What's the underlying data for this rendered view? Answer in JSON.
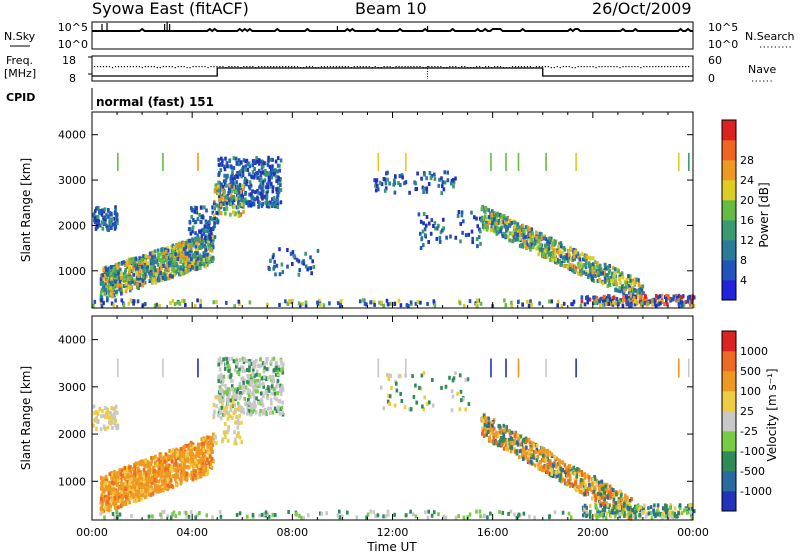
{
  "header": {
    "station": "Syowa East (fitACF)",
    "beam": "Beam 10",
    "date": "26/Oct/2009"
  },
  "top_panels": {
    "nsky_label": "N.Sky",
    "nsearch_label": "N.Search",
    "nsky_ticks": [
      "10^5",
      "10^0"
    ],
    "nsearch_ticks": [
      "10^5",
      "10^0"
    ],
    "freq_label_line1": "Freq.",
    "freq_label_line2": "[MHz]",
    "freq_ticks": [
      "18",
      "8"
    ],
    "nave_ticks": [
      "60",
      "0"
    ],
    "nave_label": "Nave",
    "cpid_label": "CPID",
    "cpid_value": "normal (fast) 151"
  },
  "chart_data": [
    {
      "type": "heatmap",
      "xlabel": "",
      "ylabel": "Slant Range [km]",
      "xlim": [
        0,
        24
      ],
      "ylim": [
        180,
        4500
      ],
      "yticks": [
        "1000",
        "2000",
        "3000",
        "4000"
      ],
      "colorbar": {
        "label": "Power [dB]",
        "ticks": [
          "4",
          "8",
          "12",
          "16",
          "20",
          "24",
          "28"
        ],
        "colors": [
          "#2222dd",
          "#2255bb",
          "#2a7a99",
          "#3a9a70",
          "#66bb44",
          "#ddcc22",
          "#ee9922",
          "#ee6622",
          "#dd2222"
        ]
      }
    },
    {
      "type": "heatmap",
      "xlabel": "Time UT",
      "ylabel": "Slant Range [km]",
      "xlim": [
        0,
        24
      ],
      "ylim": [
        180,
        4500
      ],
      "xticks": [
        "00:00",
        "04:00",
        "08:00",
        "12:00",
        "16:00",
        "20:00",
        "00:00"
      ],
      "yticks": [
        "1000",
        "2000",
        "3000",
        "4000"
      ],
      "colorbar": {
        "label": "Velocity [m s⁻¹]",
        "ticks": [
          "1000",
          "500",
          "100",
          "25",
          "-25",
          "-100",
          "-500",
          "-1000"
        ],
        "colors": [
          "#2233bb",
          "#2a6aa0",
          "#2e8b57",
          "#77cc44",
          "#c8c8c8",
          "#eecc44",
          "#ee9922",
          "#ee6a22",
          "#dd2222"
        ]
      }
    }
  ]
}
